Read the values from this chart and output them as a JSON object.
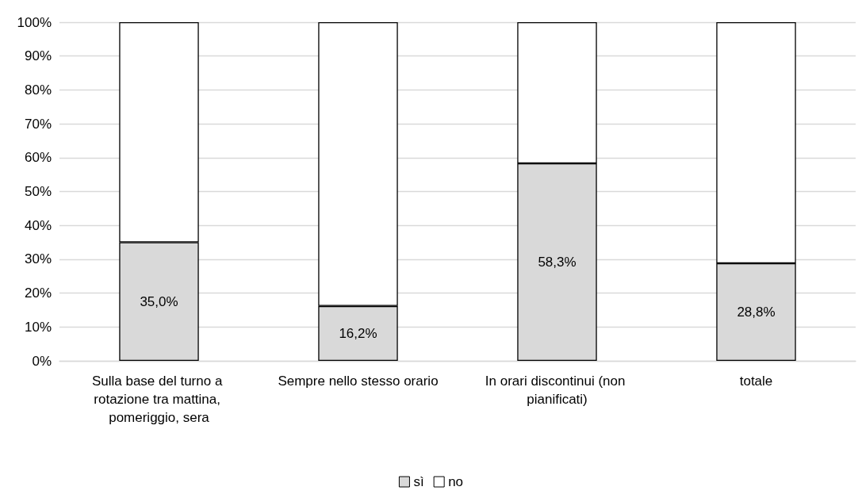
{
  "chart_data": {
    "type": "bar",
    "stacked": true,
    "categories": [
      "Sulla base del turno a rotazione tra mattina, pomeriggio, sera",
      "Sempre nello stesso orario",
      "In orari discontinui (non pianificati)",
      "totale"
    ],
    "series": [
      {
        "name": "sì",
        "color": "#d9d9d9",
        "values": [
          35.0,
          16.2,
          58.3,
          28.8
        ],
        "value_labels": [
          "35,0%",
          "16,2%",
          "58,3%",
          "28,8%"
        ]
      },
      {
        "name": "no",
        "color": "#ffffff",
        "values": [
          65.0,
          83.8,
          41.7,
          71.2
        ]
      }
    ],
    "ylim": [
      0,
      100
    ],
    "yticks": [
      {
        "value": 0,
        "label": "0%"
      },
      {
        "value": 10,
        "label": "10%"
      },
      {
        "value": 20,
        "label": "20%"
      },
      {
        "value": 30,
        "label": "30%"
      },
      {
        "value": 40,
        "label": "40%"
      },
      {
        "value": 50,
        "label": "50%"
      },
      {
        "value": 60,
        "label": "60%"
      },
      {
        "value": 70,
        "label": "70%"
      },
      {
        "value": 80,
        "label": "80%"
      },
      {
        "value": 90,
        "label": "90%"
      },
      {
        "value": 100,
        "label": "100%"
      }
    ],
    "grid": "y",
    "legend": "bottom"
  }
}
